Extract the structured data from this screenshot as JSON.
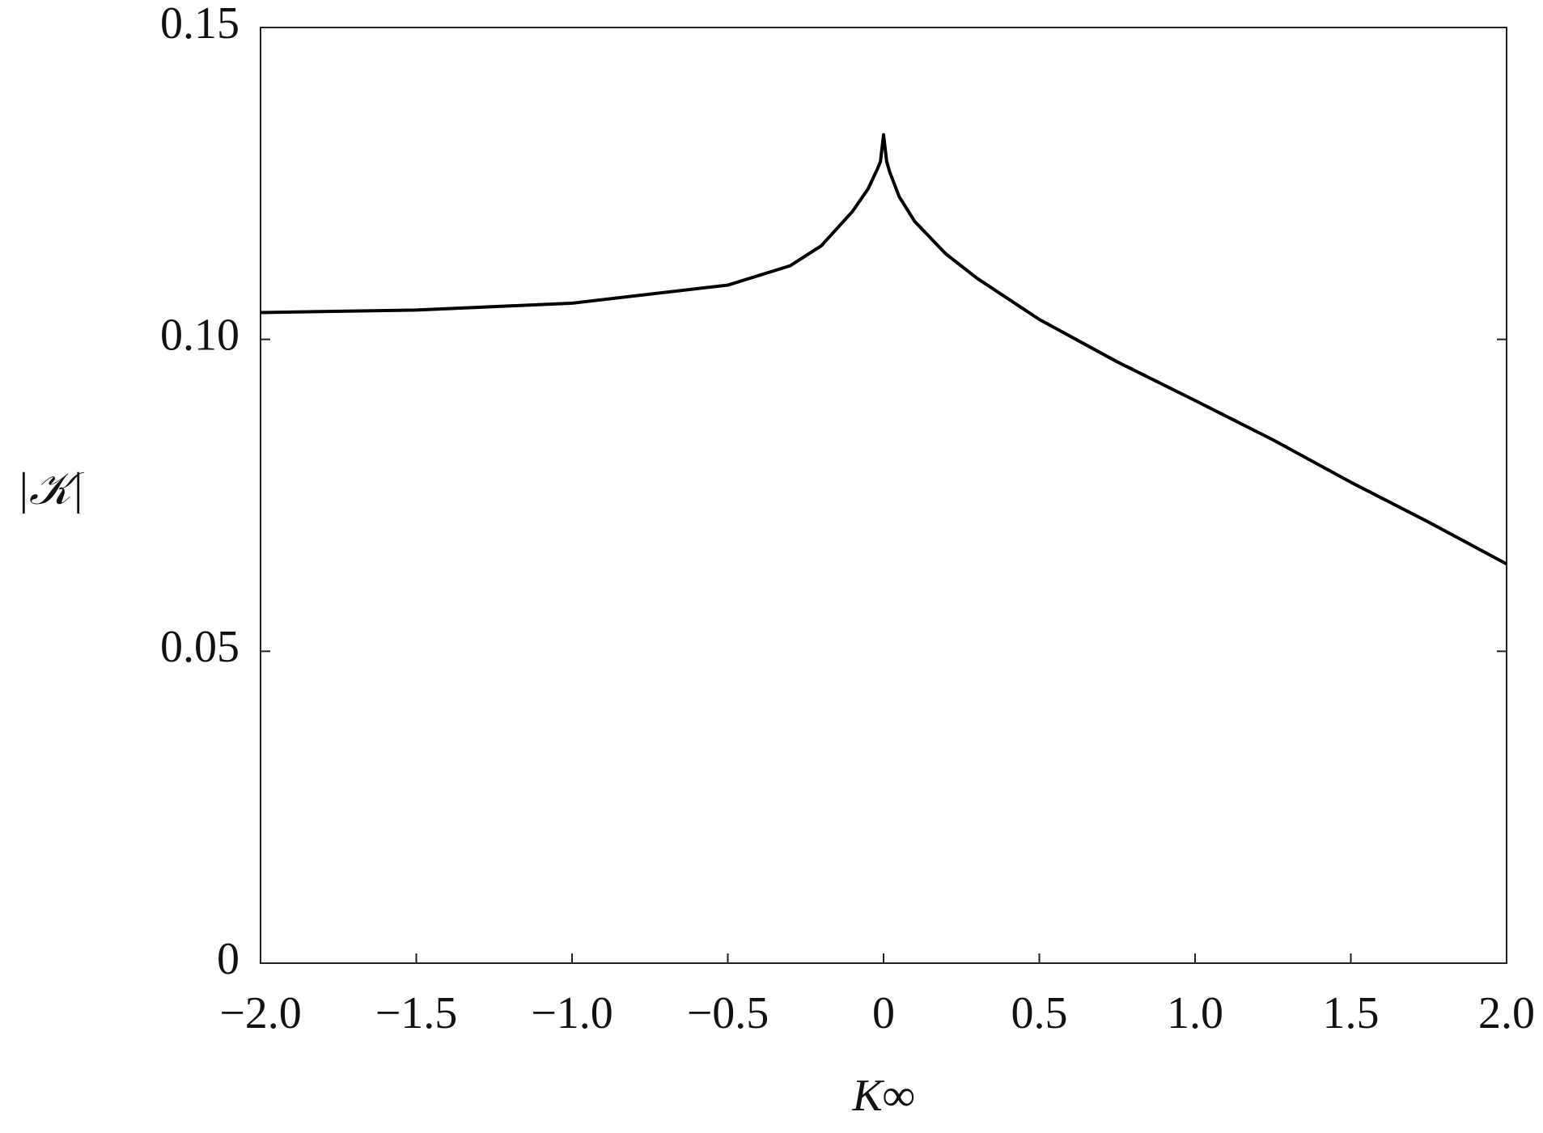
{
  "chart_data": {
    "type": "line",
    "x_label": "K∞",
    "y_label": "|𝒦|",
    "x": [
      -2,
      -1.5,
      -1,
      -0.5,
      -0.3,
      -0.2,
      -0.1,
      -0.05,
      -0.02,
      -0.01,
      0,
      0.01,
      0.02,
      0.05,
      0.1,
      0.2,
      0.3,
      0.5,
      0.75,
      1,
      1.25,
      1.5,
      1.75,
      2
    ],
    "series": [
      {
        "color": "#000000",
        "values": [
          0.1043,
          0.1047,
          0.1058,
          0.1087,
          0.1118,
          0.115,
          0.1205,
          0.1241,
          0.1273,
          0.1285,
          0.1328,
          0.1285,
          0.1268,
          0.1229,
          0.1189,
          0.1137,
          0.1098,
          0.1032,
          0.0964,
          0.0902,
          0.0839,
          0.0771,
          0.0707,
          0.064
        ]
      }
    ],
    "xlim": [
      -2,
      2
    ],
    "xticks": [
      {
        "value": -2,
        "label": "−2.0"
      },
      {
        "value": -1.5,
        "label": "−1.5"
      },
      {
        "value": -1,
        "label": "−1.0"
      },
      {
        "value": -0.5,
        "label": "−0.5"
      },
      0,
      0.5,
      {
        "value": 1,
        "label": "1.0"
      },
      1.5,
      {
        "value": 2,
        "label": "2.0"
      }
    ],
    "ylim": [
      0,
      0.15
    ],
    "yticks": [
      0,
      0.05,
      {
        "value": 0.1,
        "label": "0.10"
      },
      0.15
    ],
    "grid": false
  }
}
